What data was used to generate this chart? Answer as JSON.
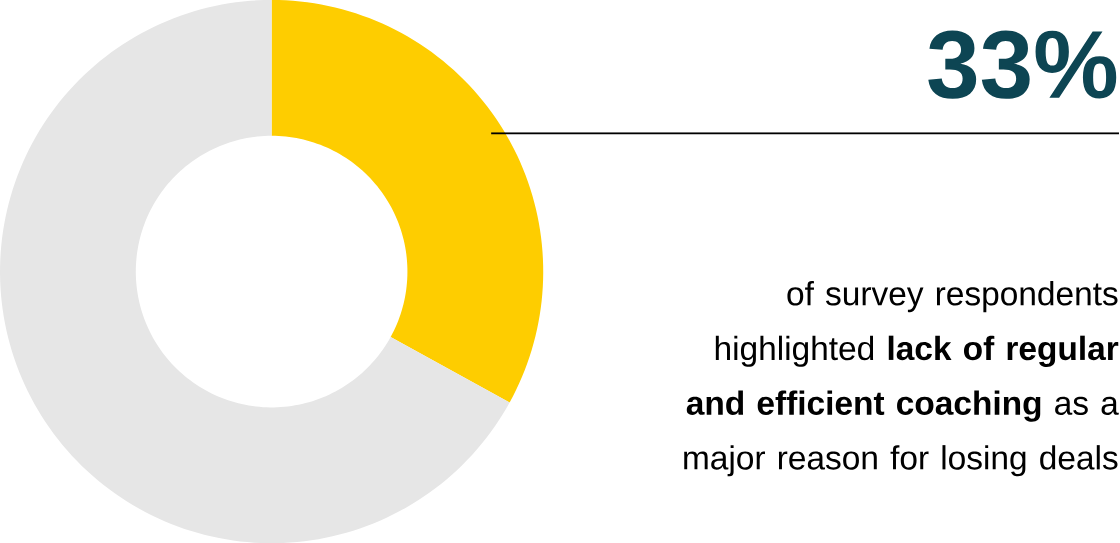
{
  "chart_data": {
    "type": "donut",
    "categories": [
      null,
      null
    ],
    "values": [
      33,
      67
    ],
    "colors": [
      "#fecd00",
      "#e6e6e6"
    ],
    "value_labels": [
      "33%",
      null
    ],
    "annotations": [
      "of survey respondents highlighted **lack of regular and efficient coaching** as a major reason for losing deals"
    ]
  }
}
